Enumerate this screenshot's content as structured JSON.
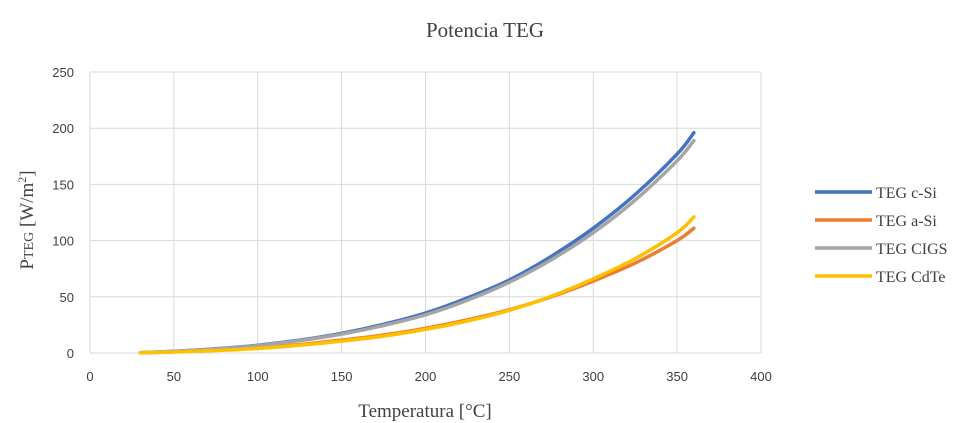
{
  "chart_data": {
    "type": "line",
    "title": "Potencia TEG",
    "xlabel": "Temperatura [°C]",
    "ylabel_main": "P",
    "ylabel_sub": "TEG",
    "ylabel_unit": " [W/m",
    "ylabel_sup": "2",
    "ylabel_close": "]",
    "xlim": [
      0,
      400
    ],
    "ylim": [
      0,
      250
    ],
    "xticks": [
      "0",
      "50",
      "100",
      "150",
      "200",
      "250",
      "300",
      "350",
      "400"
    ],
    "yticks": [
      "0",
      "50",
      "100",
      "150",
      "200",
      "250"
    ],
    "grid": true,
    "legend_position": "right",
    "x": [
      30,
      50,
      75,
      100,
      125,
      150,
      175,
      200,
      225,
      250,
      275,
      300,
      325,
      350,
      360
    ],
    "series": [
      {
        "name": "TEG c-Si",
        "color": "#4472C4",
        "values": [
          0.3,
          1.5,
          3.7,
          6.9,
          11.5,
          17.5,
          25.5,
          35.5,
          49,
          65,
          86,
          111,
          141,
          177,
          196
        ]
      },
      {
        "name": "TEG a-Si",
        "color": "#ED7D31",
        "values": [
          0.2,
          1.0,
          2.4,
          4.5,
          7.5,
          11.5,
          16,
          22,
          29.5,
          38.5,
          50,
          64,
          80,
          100,
          111
        ]
      },
      {
        "name": "TEG CIGS",
        "color": "#A5A5A5",
        "values": [
          0.3,
          1.4,
          3.5,
          6.6,
          11,
          16.8,
          24.5,
          34,
          47,
          63,
          83,
          107,
          136,
          171,
          189
        ]
      },
      {
        "name": "TEG CdTe",
        "color": "#FFC000",
        "values": [
          0.2,
          0.9,
          2.2,
          4.1,
          6.9,
          10.6,
          15,
          21,
          28.5,
          38,
          50.5,
          66,
          84,
          107,
          121
        ]
      }
    ]
  }
}
